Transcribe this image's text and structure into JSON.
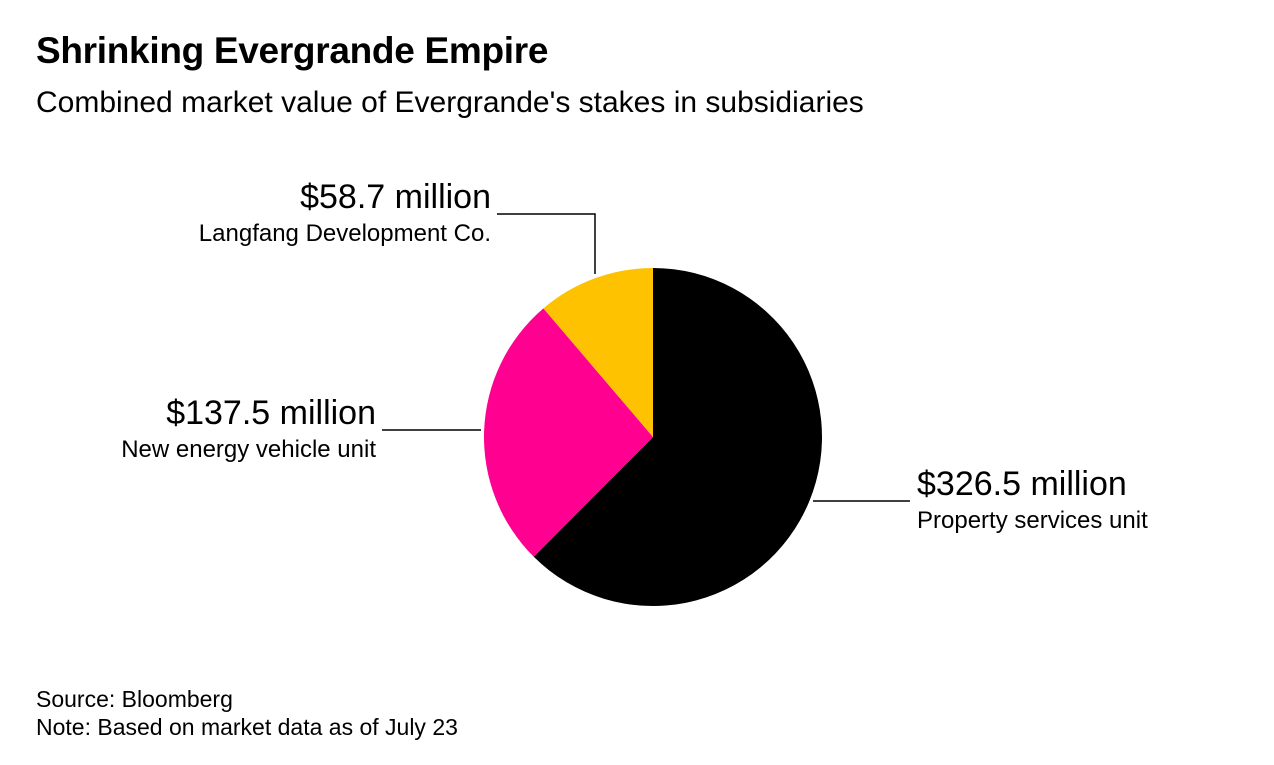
{
  "chart_data": {
    "type": "pie",
    "title": "Shrinking Evergrande Empire",
    "subtitle": "Combined market value of Evergrande's stakes in subsidiaries",
    "slices": [
      {
        "name": "Property services unit",
        "value": 326.5,
        "label": "$326.5 million",
        "color": "#000000"
      },
      {
        "name": "New energy vehicle unit",
        "value": 137.5,
        "label": "$137.5 million",
        "color": "#ff0090"
      },
      {
        "name": "Langfang Development Co.",
        "value": 58.7,
        "label": "$58.7 million",
        "color": "#ffc200"
      }
    ],
    "source": "Source: Bloomberg",
    "note": "Note: Based on market data as of July 23"
  }
}
